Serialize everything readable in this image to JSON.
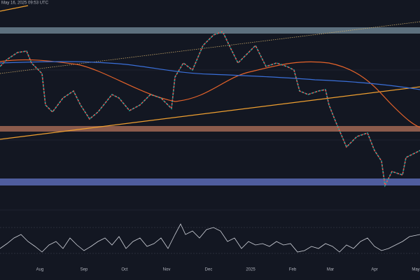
{
  "header": {
    "timestamp": "May 16, 2025 09:53 UTC"
  },
  "time_axis": {
    "labels": [
      "Aug",
      "Sep",
      "Oct",
      "Nov",
      "Dec",
      "2025",
      "Feb",
      "Mar",
      "Apr",
      "May"
    ]
  }
}
